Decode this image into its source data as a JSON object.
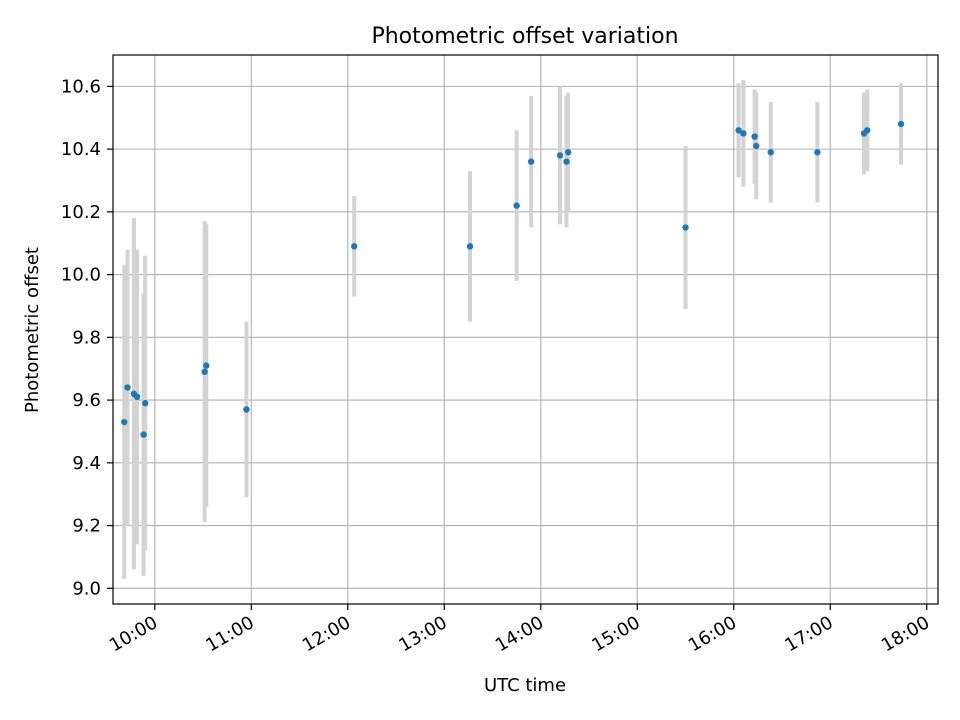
{
  "chart_data": {
    "type": "scatter",
    "title": "Photometric offset variation",
    "xlabel": "UTC time",
    "ylabel": "Photometric offset",
    "x_axis": {
      "kind": "time",
      "min": "09:34",
      "max": "18:07"
    },
    "ylim": [
      8.95,
      10.7
    ],
    "x_ticks": [
      "10:00",
      "11:00",
      "12:00",
      "13:00",
      "14:00",
      "15:00",
      "16:00",
      "17:00",
      "18:00"
    ],
    "y_ticks": [
      "9.0",
      "9.2",
      "9.4",
      "9.6",
      "9.8",
      "10.0",
      "10.2",
      "10.4",
      "10.6"
    ],
    "grid": true,
    "colors": {
      "points": "#1f77b4",
      "error_bars": "#d3d3d3",
      "grid": "#b0b0b0"
    },
    "series": [
      {
        "points": [
          {
            "x": "09:41",
            "y": 9.53,
            "err": 0.5
          },
          {
            "x": "09:43",
            "y": 9.64,
            "err": 0.44
          },
          {
            "x": "09:47",
            "y": 9.62,
            "err": 0.56
          },
          {
            "x": "09:49",
            "y": 9.61,
            "err": 0.47
          },
          {
            "x": "09:53",
            "y": 9.49,
            "err": 0.45
          },
          {
            "x": "09:54",
            "y": 9.59,
            "err": 0.47
          },
          {
            "x": "10:31",
            "y": 9.69,
            "err": 0.48
          },
          {
            "x": "10:32",
            "y": 9.71,
            "err": 0.45
          },
          {
            "x": "10:57",
            "y": 9.57,
            "err": 0.28
          },
          {
            "x": "12:04",
            "y": 10.09,
            "err": 0.16
          },
          {
            "x": "13:16",
            "y": 10.09,
            "err": 0.24
          },
          {
            "x": "13:45",
            "y": 10.22,
            "err": 0.24
          },
          {
            "x": "13:54",
            "y": 10.36,
            "err": 0.21
          },
          {
            "x": "14:12",
            "y": 10.38,
            "err": 0.22
          },
          {
            "x": "14:16",
            "y": 10.36,
            "err": 0.21
          },
          {
            "x": "14:17",
            "y": 10.39,
            "err": 0.19
          },
          {
            "x": "15:30",
            "y": 10.15,
            "err": 0.26
          },
          {
            "x": "16:03",
            "y": 10.46,
            "err": 0.15
          },
          {
            "x": "16:06",
            "y": 10.45,
            "err": 0.17
          },
          {
            "x": "16:13",
            "y": 10.44,
            "err": 0.15
          },
          {
            "x": "16:14",
            "y": 10.41,
            "err": 0.17
          },
          {
            "x": "16:23",
            "y": 10.39,
            "err": 0.16
          },
          {
            "x": "16:52",
            "y": 10.39,
            "err": 0.16
          },
          {
            "x": "17:21",
            "y": 10.45,
            "err": 0.13
          },
          {
            "x": "17:23",
            "y": 10.46,
            "err": 0.13
          },
          {
            "x": "17:44",
            "y": 10.48,
            "err": 0.13
          }
        ]
      }
    ]
  }
}
